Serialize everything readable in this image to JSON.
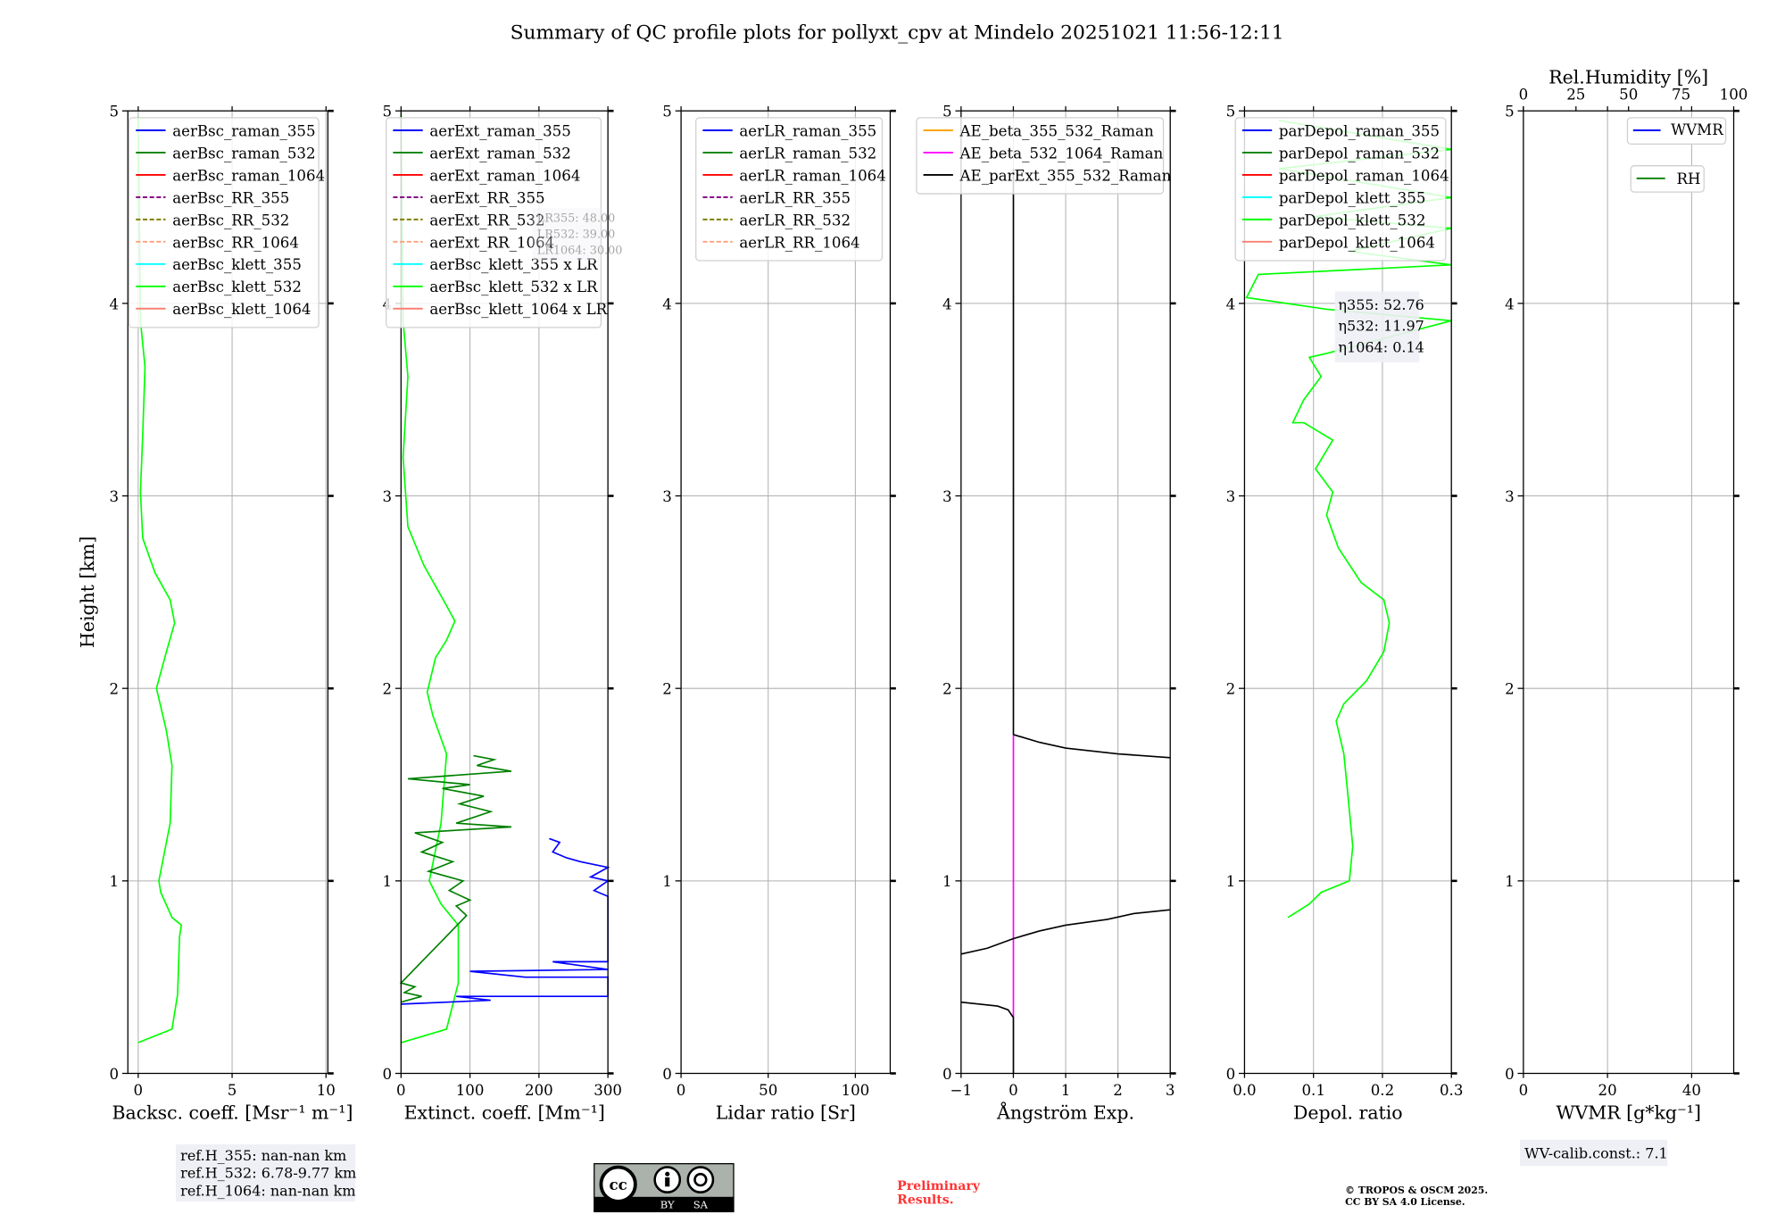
{
  "title": "Summary of QC profile plots for pollyxt_cpv at Mindelo 20251021 11:56-12:11",
  "ylabel": "Height [km]",
  "chart_data": [
    {
      "type": "line",
      "xlabel": "Backsc. coeff. [Msr⁻¹ m⁻¹]",
      "xlim": [
        -0.55,
        10.1
      ],
      "ylim": [
        0,
        5
      ],
      "xticks": [
        "0",
        "5",
        "10"
      ],
      "xtick_values": [
        0,
        5,
        10
      ],
      "yticks": [
        "0",
        "1",
        "2",
        "3",
        "4",
        "5"
      ],
      "legend": [
        {
          "label": "aerBsc_raman_355",
          "color": "#0000ff",
          "dash": false
        },
        {
          "label": "aerBsc_raman_532",
          "color": "#008000",
          "dash": false
        },
        {
          "label": "aerBsc_raman_1064",
          "color": "#ff0000",
          "dash": false
        },
        {
          "label": "aerBsc_RR_355",
          "color": "#800080",
          "dash": true
        },
        {
          "label": "aerBsc_RR_532",
          "color": "#808000",
          "dash": true
        },
        {
          "label": "aerBsc_RR_1064",
          "color": "#ffa07a",
          "dash": true
        },
        {
          "label": "aerBsc_klett_355",
          "color": "#00ffff",
          "dash": false
        },
        {
          "label": "aerBsc_klett_532",
          "color": "#00ff00",
          "dash": false
        },
        {
          "label": "aerBsc_klett_1064",
          "color": "#fa8072",
          "dash": false
        }
      ],
      "series": [
        {
          "name": "aerBsc_klett_532",
          "color": "#00ff00",
          "points": [
            [
              0,
              0.16
            ],
            [
              1.8,
              0.23
            ],
            [
              2.1,
              0.41
            ],
            [
              2.2,
              0.71
            ],
            [
              2.3,
              0.77
            ],
            [
              1.8,
              0.81
            ],
            [
              1.2,
              0.94
            ],
            [
              1.1,
              1.0
            ],
            [
              1.7,
              1.3
            ],
            [
              1.8,
              1.6
            ],
            [
              1.5,
              1.78
            ],
            [
              0.97,
              2.0
            ],
            [
              1.5,
              2.19
            ],
            [
              1.94,
              2.34
            ],
            [
              1.7,
              2.46
            ],
            [
              0.9,
              2.6
            ],
            [
              0.24,
              2.78
            ],
            [
              0.12,
              3.02
            ],
            [
              0.24,
              3.32
            ],
            [
              0.36,
              3.67
            ],
            [
              0.12,
              3.91
            ],
            [
              0,
              4.97
            ]
          ]
        }
      ],
      "annotation": [
        "ref.H_355: nan-nan km",
        "ref.H_532: 6.78-9.77 km",
        "ref.H_1064: nan-nan km"
      ]
    },
    {
      "type": "line",
      "xlabel": "Extinct. coeff. [Mm⁻¹]",
      "xlim": [
        0,
        300
      ],
      "ylim": [
        0,
        5
      ],
      "xticks": [
        "0",
        "100",
        "200",
        "300"
      ],
      "xtick_values": [
        0,
        100,
        200,
        300
      ],
      "yticks": [
        "0",
        "1",
        "2",
        "3",
        "4",
        "5"
      ],
      "legend": [
        {
          "label": "aerExt_raman_355",
          "color": "#0000ff",
          "dash": false
        },
        {
          "label": "aerExt_raman_532",
          "color": "#008000",
          "dash": false
        },
        {
          "label": "aerExt_raman_1064",
          "color": "#ff0000",
          "dash": false
        },
        {
          "label": "aerExt_RR_355",
          "color": "#800080",
          "dash": true
        },
        {
          "label": "aerExt_RR_532",
          "color": "#808000",
          "dash": true
        },
        {
          "label": "aerExt_RR_1064",
          "color": "#ffa07a",
          "dash": true
        },
        {
          "label": "aerBsc_klett_355 x LR",
          "color": "#00ffff",
          "dash": false
        },
        {
          "label": "aerBsc_klett_532 x LR",
          "color": "#00ff00",
          "dash": false
        },
        {
          "label": "aerBsc_klett_1064 x LR",
          "color": "#fa8072",
          "dash": false
        }
      ],
      "series": [
        {
          "name": "aerBsc_klett_532 x LR",
          "color": "#00ff00",
          "points": [
            [
              0,
              0.16
            ],
            [
              66,
              0.23
            ],
            [
              83,
              0.47
            ],
            [
              83,
              0.77
            ],
            [
              58,
              0.88
            ],
            [
              41,
              1.0
            ],
            [
              58,
              1.3
            ],
            [
              66,
              1.66
            ],
            [
              46,
              1.86
            ],
            [
              38,
              1.98
            ],
            [
              50,
              2.16
            ],
            [
              66,
              2.25
            ],
            [
              78,
              2.35
            ],
            [
              66,
              2.43
            ],
            [
              33,
              2.64
            ],
            [
              10,
              2.84
            ],
            [
              3,
              3.2
            ],
            [
              10,
              3.62
            ],
            [
              3,
              3.91
            ],
            [
              0,
              4.98
            ]
          ]
        },
        {
          "name": "aerExt_raman_532",
          "color": "#008000",
          "points": [
            [
              0,
              0.37
            ],
            [
              30,
              0.4
            ],
            [
              5,
              0.42
            ],
            [
              20,
              0.45
            ],
            [
              0,
              0.47
            ],
            [
              95,
              0.82
            ],
            [
              80,
              0.87
            ],
            [
              100,
              0.9
            ],
            [
              70,
              0.95
            ],
            [
              90,
              1.0
            ],
            [
              40,
              1.05
            ],
            [
              75,
              1.1
            ],
            [
              30,
              1.15
            ],
            [
              60,
              1.2
            ],
            [
              20,
              1.25
            ],
            [
              160,
              1.28
            ],
            [
              80,
              1.3
            ],
            [
              130,
              1.36
            ],
            [
              85,
              1.4
            ],
            [
              120,
              1.44
            ],
            [
              60,
              1.48
            ],
            [
              100,
              1.5
            ],
            [
              10,
              1.53
            ],
            [
              160,
              1.57
            ],
            [
              110,
              1.6
            ],
            [
              135,
              1.63
            ],
            [
              105,
              1.65
            ]
          ]
        },
        {
          "name": "aerExt_raman_355",
          "color": "#0000ff",
          "points": [
            [
              0,
              0.36
            ],
            [
              130,
              0.38
            ],
            [
              80,
              0.4
            ],
            [
              300,
              0.4
            ],
            [
              300,
              0.5
            ],
            [
              180,
              0.5
            ],
            [
              100,
              0.53
            ],
            [
              300,
              0.54
            ],
            [
              220,
              0.58
            ],
            [
              300,
              0.58
            ],
            [
              300,
              0.92
            ],
            [
              280,
              0.95
            ],
            [
              300,
              1.0
            ],
            [
              275,
              1.02
            ],
            [
              300,
              1.07
            ],
            [
              260,
              1.1
            ],
            [
              240,
              1.12
            ],
            [
              220,
              1.15
            ],
            [
              230,
              1.2
            ],
            [
              215,
              1.22
            ]
          ]
        }
      ],
      "annotation": [
        "LR355: 48.00",
        "LR532: 39.00",
        "LR1064: 30.00"
      ]
    },
    {
      "type": "line",
      "xlabel": "Lidar ratio [Sr]",
      "xlim": [
        0,
        120
      ],
      "ylim": [
        0,
        5
      ],
      "xticks": [
        "0",
        "50",
        "100"
      ],
      "xtick_values": [
        0,
        50,
        100
      ],
      "yticks": [
        "0",
        "1",
        "2",
        "3",
        "4",
        "5"
      ],
      "legend": [
        {
          "label": "aerLR_raman_355",
          "color": "#0000ff",
          "dash": false
        },
        {
          "label": "aerLR_raman_532",
          "color": "#008000",
          "dash": false
        },
        {
          "label": "aerLR_raman_1064",
          "color": "#ff0000",
          "dash": false
        },
        {
          "label": "aerLR_RR_355",
          "color": "#800080",
          "dash": true
        },
        {
          "label": "aerLR_RR_532",
          "color": "#808000",
          "dash": true
        },
        {
          "label": "aerLR_RR_1064",
          "color": "#ffa07a",
          "dash": true
        }
      ],
      "series": []
    },
    {
      "type": "line",
      "xlabel": "Ångström Exp.",
      "xlim": [
        -1,
        3
      ],
      "ylim": [
        0,
        5
      ],
      "xticks": [
        "−1",
        "0",
        "1",
        "2",
        "3"
      ],
      "xtick_values": [
        -1,
        0,
        1,
        2,
        3
      ],
      "yticks": [
        "0",
        "1",
        "2",
        "3",
        "4",
        "5"
      ],
      "legend": [
        {
          "label": "AE_beta_355_532_Raman",
          "color": "#ffa500",
          "dash": false
        },
        {
          "label": "AE_beta_532_1064_Raman",
          "color": "#ff00ff",
          "dash": false
        },
        {
          "label": "AE_parExt_355_532_Raman",
          "color": "#000000",
          "dash": false
        }
      ],
      "series": [
        {
          "name": "AE_beta_532_1064_Raman",
          "color": "#ff00ff",
          "points": [
            [
              0,
              0.29
            ],
            [
              0,
              1.76
            ]
          ]
        },
        {
          "name": "AE_parExt_355_532_Raman",
          "color": "#000000",
          "points": [
            [
              0,
              1.76
            ],
            [
              0,
              4.7
            ]
          ]
        },
        {
          "name": "AE_parExt_355_532_Raman",
          "color": "#000000",
          "points": [
            [
              0,
              1.76
            ],
            [
              0.5,
              1.72
            ],
            [
              1,
              1.69
            ],
            [
              2,
              1.66
            ],
            [
              3,
              1.64
            ]
          ]
        },
        {
          "name": "AE_parExt_355_532_Raman",
          "color": "#000000",
          "points": [
            [
              -1,
              0.62
            ],
            [
              -0.5,
              0.65
            ],
            [
              0,
              0.7
            ],
            [
              0.5,
              0.74
            ],
            [
              1,
              0.77
            ],
            [
              1.8,
              0.8
            ],
            [
              2.3,
              0.83
            ],
            [
              3,
              0.85
            ]
          ]
        },
        {
          "name": "AE_parExt_355_532_Raman",
          "color": "#000000",
          "points": [
            [
              -1,
              0.37
            ],
            [
              -0.3,
              0.35
            ],
            [
              -0.1,
              0.33
            ],
            [
              0,
              0.29
            ],
            [
              0,
              0
            ]
          ]
        }
      ]
    },
    {
      "type": "line",
      "xlabel": "Depol. ratio",
      "xlim": [
        0,
        0.3
      ],
      "ylim": [
        0,
        5
      ],
      "xticks": [
        "0.0",
        "0.1",
        "0.2",
        "0.3"
      ],
      "xtick_values": [
        0,
        0.1,
        0.2,
        0.3
      ],
      "yticks": [
        "0",
        "1",
        "2",
        "3",
        "4",
        "5"
      ],
      "legend": [
        {
          "label": "parDepol_raman_355",
          "color": "#0000ff",
          "dash": false
        },
        {
          "label": "parDepol_raman_532",
          "color": "#008000",
          "dash": false
        },
        {
          "label": "parDepol_raman_1064",
          "color": "#ff0000",
          "dash": false
        },
        {
          "label": "parDepol_klett_355",
          "color": "#00ffff",
          "dash": false
        },
        {
          "label": "parDepol_klett_532",
          "color": "#00ff00",
          "dash": false
        },
        {
          "label": "parDepol_klett_1064",
          "color": "#fa8072",
          "dash": false
        }
      ],
      "series": [
        {
          "name": "parDepol_klett_532",
          "color": "#00ff00",
          "points": [
            [
              0.063,
              0.81
            ],
            [
              0.094,
              0.88
            ],
            [
              0.111,
              0.94
            ],
            [
              0.152,
              1.0
            ],
            [
              0.157,
              1.18
            ],
            [
              0.149,
              1.48
            ],
            [
              0.144,
              1.66
            ],
            [
              0.133,
              1.83
            ],
            [
              0.144,
              1.92
            ],
            [
              0.177,
              2.04
            ],
            [
              0.202,
              2.19
            ],
            [
              0.21,
              2.34
            ],
            [
              0.202,
              2.46
            ],
            [
              0.169,
              2.55
            ],
            [
              0.136,
              2.73
            ],
            [
              0.119,
              2.9
            ],
            [
              0.128,
              3.02
            ],
            [
              0.103,
              3.14
            ],
            [
              0.128,
              3.29
            ],
            [
              0.086,
              3.38
            ],
            [
              0.07,
              3.38
            ],
            [
              0.086,
              3.5
            ],
            [
              0.111,
              3.62
            ],
            [
              0.094,
              3.72
            ],
            [
              0.119,
              3.74
            ],
            [
              0.3,
              3.91
            ],
            [
              0.119,
              3.97
            ],
            [
              0.003,
              4.03
            ],
            [
              0.02,
              4.15
            ],
            [
              0.3,
              4.2
            ],
            [
              0.152,
              4.27
            ],
            [
              0.3,
              4.39
            ],
            [
              0.1,
              4.45
            ],
            [
              0.3,
              4.55
            ],
            [
              0.05,
              4.7
            ],
            [
              0.3,
              4.8
            ],
            [
              0.05,
              4.95
            ]
          ]
        }
      ],
      "annotation": [
        "η355: 52.76",
        "η532: 11.97",
        "η1064: 0.14"
      ]
    },
    {
      "type": "line",
      "xlabel": "WVMR [g*kg⁻¹]",
      "xlim": [
        0,
        50
      ],
      "ylim": [
        0,
        5
      ],
      "xticks": [
        "0",
        "20",
        "40"
      ],
      "xtick_values": [
        0,
        20,
        40
      ],
      "yticks": [
        "0",
        "1",
        "2",
        "3",
        "4",
        "5"
      ],
      "top_xlabel": "Rel.Humidity [%]",
      "top_xlim": [
        0,
        100
      ],
      "top_xticks": [
        "0",
        "25",
        "50",
        "75",
        "100"
      ],
      "top_xtick_values": [
        0,
        25,
        50,
        75,
        100
      ],
      "legend": [
        {
          "label": "WVMR",
          "color": "#0000ff",
          "dash": false
        },
        {
          "label": "RH",
          "color": "#008000",
          "dash": false
        }
      ],
      "series": [],
      "annotation": [
        "WV-calib.const.: 7.1"
      ]
    }
  ],
  "footer": {
    "license_badge": "CC BY SA",
    "badge_by": "BY",
    "badge_sa": "SA",
    "preliminary": [
      "Preliminary",
      "Results."
    ],
    "copyright": [
      "© TROPOS & OSCM 2025.",
      "CC BY SA 4.0 License."
    ]
  },
  "colors": {
    "grid": "#b0b0b0",
    "annot_bg": "#eef0f5",
    "preliminary": "#ff3333"
  }
}
